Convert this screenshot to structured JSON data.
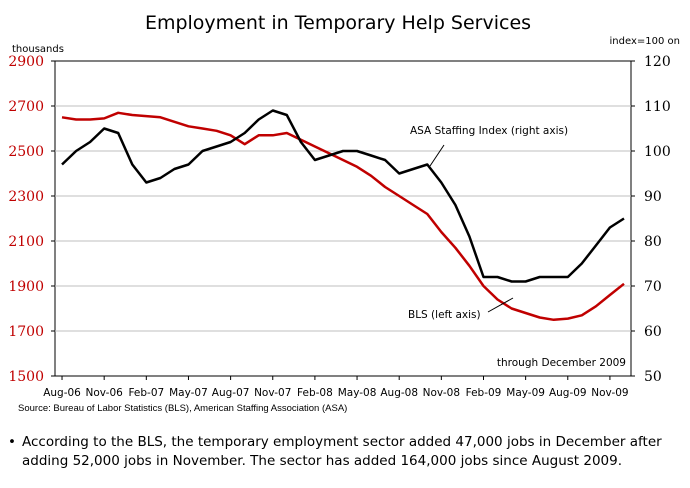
{
  "chart_data": {
    "type": "line",
    "title": "Employment in Temporary Help Services",
    "left_axis": {
      "label": "thousands",
      "ylim": [
        1500,
        2900
      ],
      "ticks": [
        1500,
        1700,
        1900,
        2100,
        2300,
        2500,
        2700,
        2900
      ],
      "color": "#c00000"
    },
    "right_axis": {
      "label": "index=100 on",
      "ylim": [
        50,
        120
      ],
      "ticks": [
        50,
        60,
        70,
        80,
        90,
        100,
        110,
        120
      ]
    },
    "x_ticks": [
      {
        "label": "Aug-06",
        "i": 0
      },
      {
        "label": "Nov-06",
        "i": 3
      },
      {
        "label": "Feb-07",
        "i": 6
      },
      {
        "label": "May-07",
        "i": 9
      },
      {
        "label": "Aug-07",
        "i": 12
      },
      {
        "label": "Nov-07",
        "i": 15
      },
      {
        "label": "Feb-08",
        "i": 18
      },
      {
        "label": "May-08",
        "i": 21
      },
      {
        "label": "Aug-08",
        "i": 24
      },
      {
        "label": "Nov-08",
        "i": 27
      },
      {
        "label": "Feb-09",
        "i": 30
      },
      {
        "label": "May-09",
        "i": 33
      },
      {
        "label": "Aug-09",
        "i": 36
      },
      {
        "label": "Nov-09",
        "i": 39
      }
    ],
    "x_count": 41,
    "series": [
      {
        "name": "BLS (left axis)",
        "axis": "left",
        "color": "#c00000",
        "values": [
          2650,
          2640,
          2640,
          2645,
          2670,
          2660,
          2655,
          2650,
          2630,
          2610,
          2600,
          2590,
          2570,
          2530,
          2570,
          2570,
          2580,
          2550,
          2520,
          2490,
          2460,
          2430,
          2390,
          2340,
          2300,
          2260,
          2220,
          2140,
          2070,
          1990,
          1900,
          1840,
          1800,
          1780,
          1760,
          1750,
          1755,
          1770,
          1810,
          1860,
          1910
        ]
      },
      {
        "name": "ASA Staffing Index (right axis)",
        "axis": "right",
        "color": "#000000",
        "values": [
          97,
          100,
          102,
          105,
          104,
          97,
          93,
          94,
          96,
          97,
          100,
          101,
          102,
          104,
          107,
          109,
          108,
          102,
          98,
          99,
          100,
          100,
          99,
          98,
          95,
          96,
          97,
          93,
          88,
          81,
          72,
          72,
          71,
          71,
          72,
          72,
          72,
          75,
          79,
          83,
          85
        ]
      }
    ],
    "annotations": {
      "asa": "ASA Staffing Index (right axis)",
      "bls": "BLS (left axis)",
      "through": "through  December 2009"
    }
  },
  "source": "Source: Bureau of Labor Statistics (BLS), American Staffing Association (ASA)",
  "note": "According to the BLS, the temporary employment sector added 47,000 jobs in December after adding 52,000 jobs in November. The sector has added 164,000 jobs since August 2009.",
  "bullet_char": "•"
}
